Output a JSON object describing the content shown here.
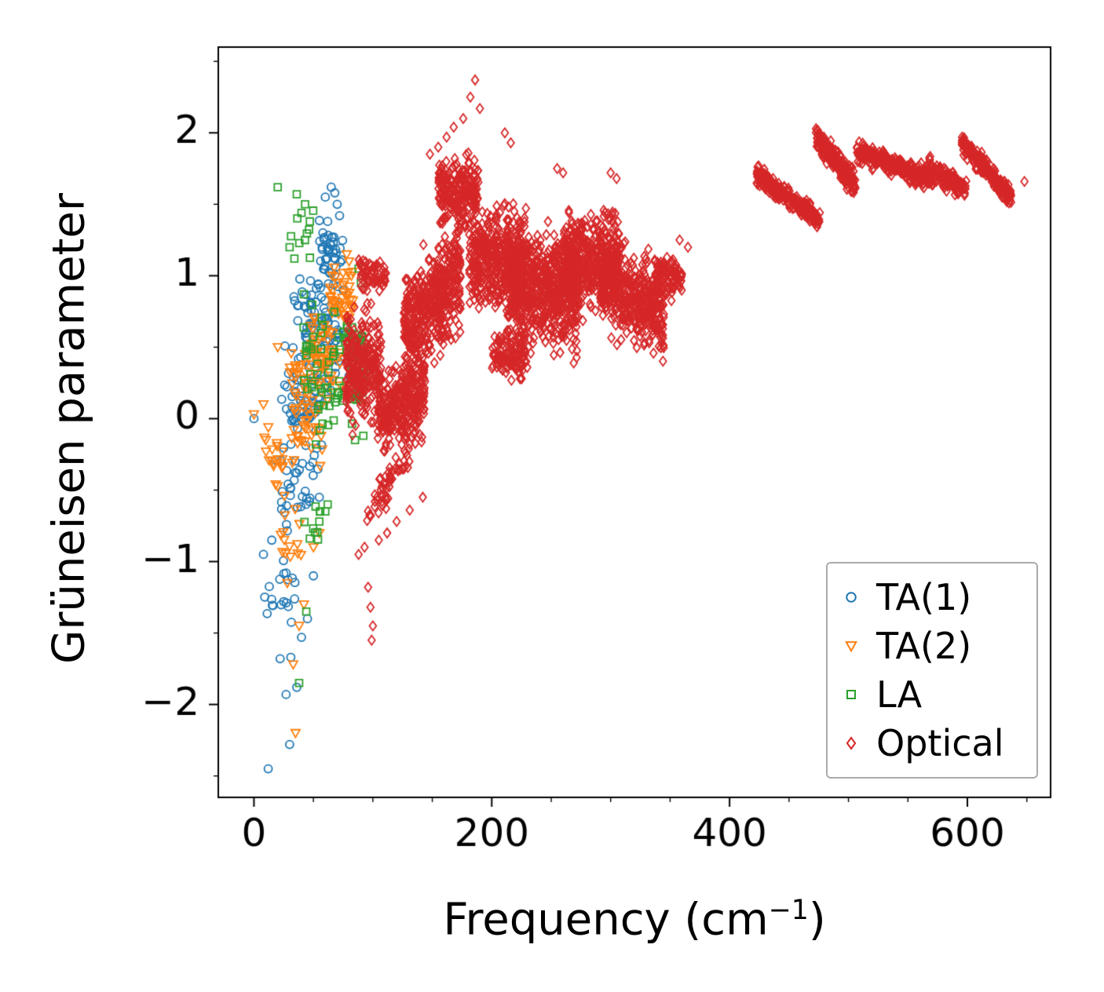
{
  "chart_data": {
    "type": "scatter",
    "title": "",
    "xlabel": {
      "prefix": "Frequency (cm",
      "superscript": "−1",
      "suffix": ")"
    },
    "ylabel": "Grüneisen parameter",
    "xlim": [
      -30,
      670
    ],
    "ylim": [
      -2.65,
      2.6
    ],
    "xticks": [
      0,
      200,
      400,
      600
    ],
    "yticks": [
      -2,
      -1,
      0,
      1,
      2
    ],
    "x_minor_step": 50,
    "y_minor_step": 0.5,
    "grid": false,
    "legend": {
      "position": "lower right"
    },
    "seed": 42,
    "cluster_format": [
      "center_x",
      "center_y",
      "half_width_x",
      "sigma_y",
      "n_points",
      "slope"
    ],
    "series": [
      {
        "name": "TA(1)",
        "marker": "circle",
        "color": "#1f77b4",
        "clusters": [
          [
            22,
            -1.15,
            14,
            0.5,
            18,
            0
          ],
          [
            34,
            -0.5,
            16,
            0.42,
            30,
            0
          ],
          [
            46,
            0.05,
            16,
            0.5,
            55,
            0
          ],
          [
            57,
            0.6,
            14,
            0.45,
            60,
            0
          ],
          [
            65,
            1.15,
            10,
            0.3,
            40,
            0
          ],
          [
            44,
            0.8,
            12,
            0.28,
            18,
            0
          ],
          [
            30,
            0.3,
            10,
            0.35,
            15,
            0
          ]
        ],
        "points": [
          [
            0,
            0
          ],
          [
            12,
            -2.45
          ],
          [
            30,
            -2.28
          ],
          [
            27,
            -1.93
          ],
          [
            36,
            -1.88
          ],
          [
            22,
            -1.68
          ],
          [
            31,
            -1.67
          ],
          [
            40,
            -1.53
          ],
          [
            45,
            -1.4
          ],
          [
            25,
            -1.28
          ],
          [
            50,
            -1.1
          ],
          [
            55,
            -0.55
          ],
          [
            60,
            1.55
          ],
          [
            65,
            1.62
          ],
          [
            68,
            1.58
          ],
          [
            70,
            1.5
          ],
          [
            72,
            1.42
          ],
          [
            62,
            1.38
          ],
          [
            58,
            1.3
          ],
          [
            8,
            -0.95
          ],
          [
            15,
            -0.85
          ],
          [
            75,
            0.9
          ],
          [
            78,
            0.6
          ],
          [
            80,
            0.3
          ]
        ]
      },
      {
        "name": "TA(2)",
        "marker": "triangle-down",
        "color": "#ff7f0e",
        "clusters": [
          [
            17,
            -0.3,
            9,
            0.35,
            18,
            0
          ],
          [
            30,
            -0.85,
            10,
            0.4,
            14,
            0
          ],
          [
            44,
            0.0,
            14,
            0.45,
            45,
            0
          ],
          [
            60,
            0.45,
            13,
            0.4,
            55,
            0
          ],
          [
            74,
            0.85,
            10,
            0.3,
            40,
            0
          ],
          [
            35,
            0.35,
            10,
            0.3,
            15,
            0
          ]
        ],
        "points": [
          [
            0,
            0.03
          ],
          [
            35,
            -2.2
          ],
          [
            33,
            -1.72
          ],
          [
            38,
            -1.45
          ],
          [
            42,
            -1.3
          ],
          [
            28,
            -1.15
          ],
          [
            50,
            -0.9
          ],
          [
            55,
            -0.8
          ],
          [
            78,
            1.15
          ],
          [
            80,
            1.1
          ],
          [
            82,
            1.0
          ],
          [
            20,
            0.5
          ],
          [
            10,
            -0.15
          ],
          [
            8,
            0.1
          ]
        ]
      },
      {
        "name": "LA",
        "marker": "square",
        "color": "#2ca02c",
        "clusters": [
          [
            40,
            1.3,
            10,
            0.22,
            8,
            0
          ],
          [
            52,
            0.5,
            13,
            0.45,
            22,
            0
          ],
          [
            64,
            0.15,
            12,
            0.4,
            25,
            0
          ],
          [
            87,
            0.35,
            6,
            0.48,
            45,
            0
          ],
          [
            48,
            -0.8,
            9,
            0.3,
            9,
            0
          ],
          [
            75,
            0.6,
            8,
            0.3,
            15,
            0
          ]
        ],
        "points": [
          [
            20,
            1.62
          ],
          [
            36,
            1.57
          ],
          [
            43,
            1.5
          ],
          [
            40,
            1.44
          ],
          [
            47,
            1.38
          ],
          [
            30,
            1.2
          ],
          [
            34,
            1.12
          ],
          [
            38,
            -1.85
          ],
          [
            44,
            -1.35
          ],
          [
            55,
            -0.72
          ],
          [
            60,
            -0.65
          ],
          [
            88,
            1.05
          ],
          [
            90,
            0.95
          ],
          [
            92,
            -0.12
          ],
          [
            85,
            -0.15
          ],
          [
            62,
            -0.6
          ]
        ]
      },
      {
        "name": "Optical",
        "marker": "diamond",
        "color": "#d62728",
        "clusters": [
          [
            92,
            0.35,
            15,
            0.55,
            250,
            0
          ],
          [
            100,
            1.0,
            12,
            0.16,
            60,
            0
          ],
          [
            124,
            0.1,
            20,
            0.4,
            320,
            0.004
          ],
          [
            150,
            0.8,
            24,
            0.5,
            480,
            0.008
          ],
          [
            172,
            1.6,
            17,
            0.32,
            240,
            0
          ],
          [
            205,
            1.1,
            24,
            0.5,
            420,
            0
          ],
          [
            215,
            0.45,
            15,
            0.22,
            120,
            0
          ],
          [
            243,
            0.9,
            30,
            0.55,
            650,
            0
          ],
          [
            283,
            1.1,
            24,
            0.45,
            430,
            0
          ],
          [
            318,
            0.85,
            27,
            0.42,
            430,
            -0.004
          ],
          [
            348,
            1.0,
            12,
            0.22,
            90,
            0
          ],
          [
            113,
            -0.45,
            18,
            0.2,
            55,
            0.012
          ],
          [
            449,
            1.55,
            27,
            0.1,
            250,
            -0.006
          ],
          [
            489,
            1.8,
            17,
            0.11,
            230,
            -0.01
          ],
          [
            539,
            1.77,
            32,
            0.1,
            300,
            -0.003
          ],
          [
            582,
            1.68,
            17,
            0.1,
            150,
            -0.005
          ],
          [
            616,
            1.74,
            21,
            0.1,
            210,
            -0.009
          ]
        ],
        "points": [
          [
            186,
            2.37
          ],
          [
            182,
            2.25
          ],
          [
            190,
            2.17
          ],
          [
            176,
            2.1
          ],
          [
            168,
            2.04
          ],
          [
            162,
            1.97
          ],
          [
            211,
            2.0
          ],
          [
            216,
            1.93
          ],
          [
            155,
            1.9
          ],
          [
            148,
            1.85
          ],
          [
            96,
            -1.18
          ],
          [
            98,
            -1.32
          ],
          [
            100,
            -1.45
          ],
          [
            99,
            -1.55
          ],
          [
            88,
            -0.95
          ],
          [
            93,
            -0.9
          ],
          [
            105,
            -0.85
          ],
          [
            112,
            -0.8
          ],
          [
            120,
            -0.72
          ],
          [
            131,
            -0.64
          ],
          [
            142,
            -0.55
          ],
          [
            358,
            1.25
          ],
          [
            365,
            1.2
          ],
          [
            648,
            1.66
          ],
          [
            300,
            1.72
          ],
          [
            305,
            1.68
          ],
          [
            255,
            1.75
          ],
          [
            260,
            1.72
          ]
        ]
      }
    ]
  }
}
